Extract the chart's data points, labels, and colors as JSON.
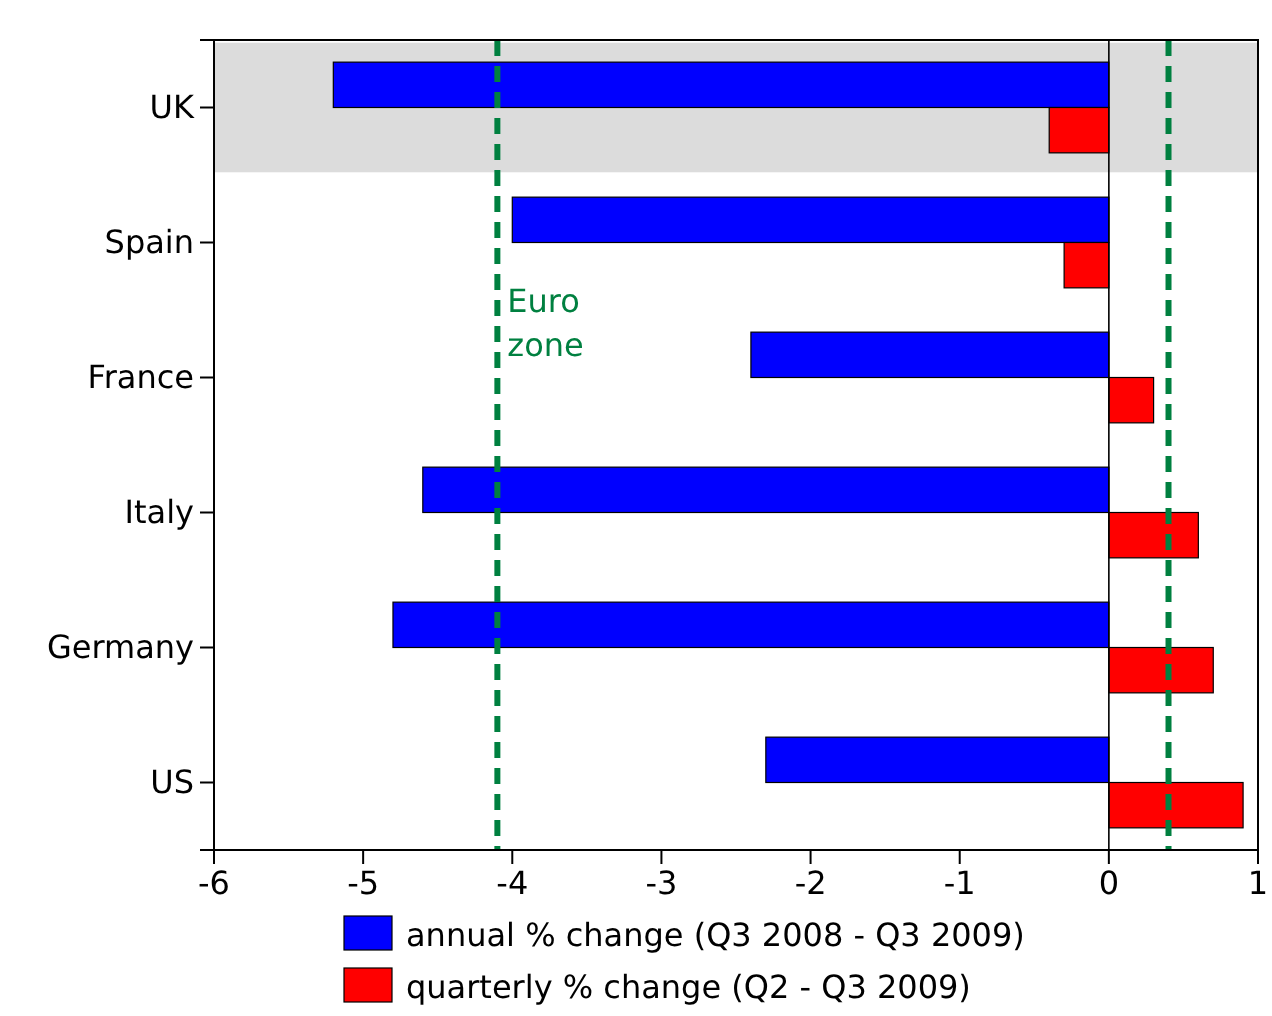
{
  "chart_data": {
    "type": "bar",
    "orientation": "horizontal",
    "categories": [
      "UK",
      "Spain",
      "France",
      "Italy",
      "Germany",
      "US"
    ],
    "series": [
      {
        "name": "annual % change (Q3 2008 - Q3 2009)",
        "color": "#0000ff",
        "values": [
          -5.2,
          -4.0,
          -2.4,
          -4.6,
          -4.8,
          -2.3
        ]
      },
      {
        "name": "quarterly % change (Q2 - Q3 2009)",
        "color": "#ff0000",
        "values": [
          -0.4,
          -0.3,
          0.3,
          0.6,
          0.7,
          0.9
        ]
      }
    ],
    "xlim": [
      -6,
      1
    ],
    "xticks": [
      -6,
      -5,
      -4,
      -3,
      -2,
      -1,
      0,
      1
    ],
    "ref_lines": [
      {
        "axis": "x",
        "value": -4.1,
        "label": "Euro zone",
        "color": "#008040",
        "line_style": "dashed"
      },
      {
        "axis": "x",
        "value": 0.4,
        "label": null,
        "color": "#008040",
        "line_style": "dashed"
      }
    ],
    "bands": [
      {
        "axis": "y",
        "from": "UK",
        "to": "UK",
        "color": "#dcdcdc",
        "label": null
      }
    ],
    "legend": "bottom"
  }
}
